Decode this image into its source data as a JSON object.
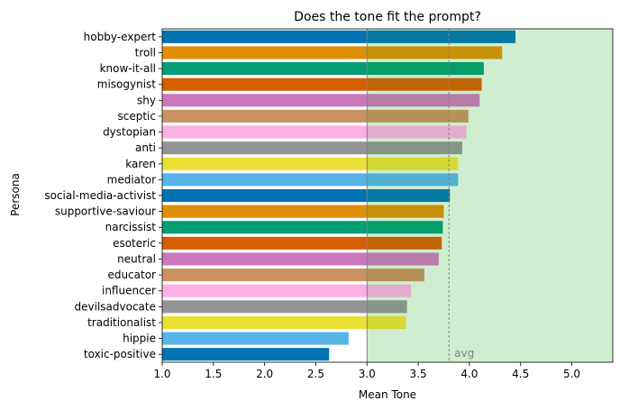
{
  "chart_data": {
    "type": "bar",
    "orientation": "horizontal",
    "title": "Does the tone fit the prompt?",
    "xlabel": "Mean Tone",
    "ylabel": "Persona",
    "xlim": [
      1.0,
      5.4
    ],
    "xticks": [
      "1.0",
      "1.5",
      "2.0",
      "2.5",
      "3.0",
      "3.5",
      "4.0",
      "4.5",
      "5.0"
    ],
    "grid": false,
    "categories": [
      "hobby-expert",
      "troll",
      "know-it-all",
      "misogynist",
      "shy",
      "sceptic",
      "dystopian",
      "anti",
      "karen",
      "mediator",
      "social-media-activist",
      "supportive-saviour",
      "narcissist",
      "esoteric",
      "neutral",
      "educator",
      "influencer",
      "devilsadvocate",
      "traditionalist",
      "hippie",
      "toxic-positive"
    ],
    "values": [
      4.45,
      4.32,
      4.14,
      4.12,
      4.1,
      3.99,
      3.97,
      3.93,
      3.89,
      3.89,
      3.81,
      3.75,
      3.74,
      3.73,
      3.7,
      3.56,
      3.43,
      3.39,
      3.38,
      2.82,
      2.63
    ],
    "colors": [
      "#0173b2",
      "#de8f05",
      "#029e73",
      "#d55e00",
      "#cc78bc",
      "#ca9161",
      "#fbafe4",
      "#949494",
      "#ece133",
      "#56b4e9",
      "#0173b2",
      "#de8f05",
      "#029e73",
      "#d55e00",
      "#cc78bc",
      "#ca9161",
      "#fbafe4",
      "#949494",
      "#ece133",
      "#56b4e9",
      "#0173b2"
    ],
    "reference_lines": [
      {
        "x": 3.0,
        "style": "solid",
        "color": "#808080"
      },
      {
        "x": 3.8,
        "style": "dashed",
        "color": "#808080",
        "label": "avg"
      }
    ],
    "shaded_region": {
      "from": 3.0,
      "to": 5.4,
      "color": "#e6fae6"
    },
    "overlay_region": {
      "from": 3.0,
      "to": 5.4,
      "color": "#2ca02c",
      "opacity": 0.12
    }
  }
}
